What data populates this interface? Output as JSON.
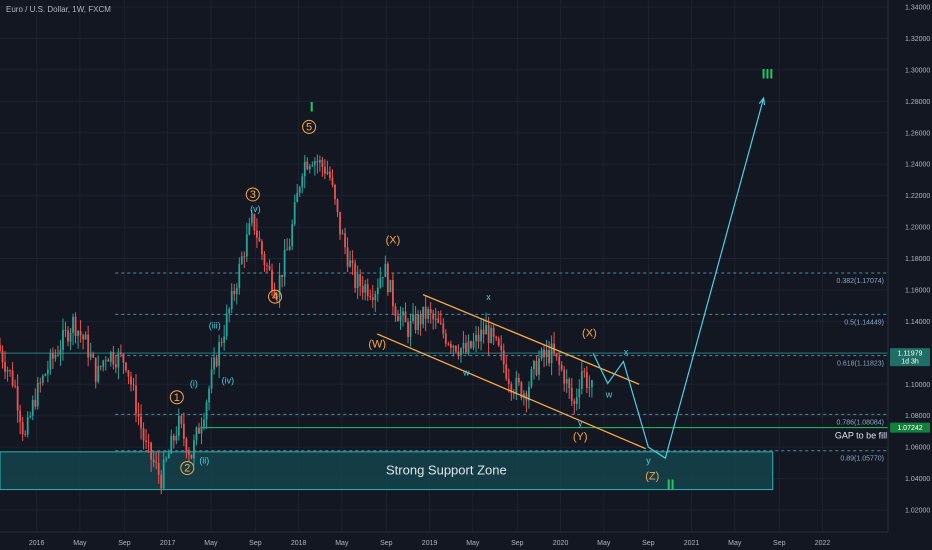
{
  "symbol_title": "Euro / U.S. Dollar, 1W, FXCM",
  "colors": {
    "background": "#131722",
    "grid": "#1e2230",
    "up": "#26a69a",
    "down": "#ef5350",
    "fib_line": "#4a90a4",
    "orange": "#f7a94a",
    "cyan": "#4dd0e1",
    "green": "#22c55e",
    "zone_fill": "#154a52",
    "zone_stroke": "#2ab3b8"
  },
  "chart_data": {
    "type": "candlestick",
    "ylim": [
      1.0,
      1.34
    ],
    "y_ticks": [
      "1.34000",
      "1.32000",
      "1.30000",
      "1.28000",
      "1.26000",
      "1.24000",
      "1.22000",
      "1.20000",
      "1.18000",
      "1.16000",
      "1.14000",
      "1.12000",
      "1.10000",
      "1.08000",
      "1.06000",
      "1.04000",
      "1.02000"
    ],
    "y_tick_values": [
      1.34,
      1.32,
      1.3,
      1.28,
      1.26,
      1.24,
      1.22,
      1.2,
      1.18,
      1.16,
      1.14,
      1.12,
      1.1,
      1.08,
      1.06,
      1.04,
      1.02
    ],
    "x_ticks": [
      {
        "label": "2016",
        "t": 2016.0
      },
      {
        "label": "May",
        "t": 2016.33
      },
      {
        "label": "Sep",
        "t": 2016.67
      },
      {
        "label": "2017",
        "t": 2017.0
      },
      {
        "label": "May",
        "t": 2017.33
      },
      {
        "label": "Sep",
        "t": 2017.67
      },
      {
        "label": "2018",
        "t": 2018.0
      },
      {
        "label": "May",
        "t": 2018.33
      },
      {
        "label": "Sep",
        "t": 2018.67
      },
      {
        "label": "2019",
        "t": 2019.0
      },
      {
        "label": "May",
        "t": 2019.33
      },
      {
        "label": "Sep",
        "t": 2019.67
      },
      {
        "label": "2020",
        "t": 2020.0
      },
      {
        "label": "May",
        "t": 2020.33
      },
      {
        "label": "Sep",
        "t": 2020.67
      },
      {
        "label": "2021",
        "t": 2021.0
      },
      {
        "label": "May",
        "t": 2021.33
      },
      {
        "label": "Sep",
        "t": 2021.67
      },
      {
        "label": "2022",
        "t": 2022.0
      }
    ],
    "xlim": [
      2015.72,
      2022.5
    ],
    "price_path": [
      {
        "t": 2015.72,
        "p": 1.125
      },
      {
        "t": 2015.85,
        "p": 1.1
      },
      {
        "t": 2015.93,
        "p": 1.065
      },
      {
        "t": 2016.0,
        "p": 1.09
      },
      {
        "t": 2016.1,
        "p": 1.11
      },
      {
        "t": 2016.3,
        "p": 1.14
      },
      {
        "t": 2016.4,
        "p": 1.125
      },
      {
        "t": 2016.48,
        "p": 1.105
      },
      {
        "t": 2016.55,
        "p": 1.12
      },
      {
        "t": 2016.7,
        "p": 1.115
      },
      {
        "t": 2016.85,
        "p": 1.06
      },
      {
        "t": 2016.97,
        "p": 1.04
      },
      {
        "t": 2017.1,
        "p": 1.075
      },
      {
        "t": 2017.2,
        "p": 1.055
      },
      {
        "t": 2017.3,
        "p": 1.085
      },
      {
        "t": 2017.4,
        "p": 1.12
      },
      {
        "t": 2017.5,
        "p": 1.15
      },
      {
        "t": 2017.6,
        "p": 1.185
      },
      {
        "t": 2017.67,
        "p": 1.205
      },
      {
        "t": 2017.75,
        "p": 1.18
      },
      {
        "t": 2017.85,
        "p": 1.16
      },
      {
        "t": 2017.95,
        "p": 1.19
      },
      {
        "t": 2018.05,
        "p": 1.24
      },
      {
        "t": 2018.12,
        "p": 1.245
      },
      {
        "t": 2018.25,
        "p": 1.235
      },
      {
        "t": 2018.33,
        "p": 1.2
      },
      {
        "t": 2018.45,
        "p": 1.165
      },
      {
        "t": 2018.6,
        "p": 1.16
      },
      {
        "t": 2018.67,
        "p": 1.175
      },
      {
        "t": 2018.75,
        "p": 1.15
      },
      {
        "t": 2018.85,
        "p": 1.135
      },
      {
        "t": 2019.0,
        "p": 1.145
      },
      {
        "t": 2019.15,
        "p": 1.13
      },
      {
        "t": 2019.3,
        "p": 1.12
      },
      {
        "t": 2019.45,
        "p": 1.135
      },
      {
        "t": 2019.55,
        "p": 1.12
      },
      {
        "t": 2019.65,
        "p": 1.1
      },
      {
        "t": 2019.75,
        "p": 1.095
      },
      {
        "t": 2019.85,
        "p": 1.115
      },
      {
        "t": 2019.95,
        "p": 1.12
      },
      {
        "t": 2020.05,
        "p": 1.105
      },
      {
        "t": 2020.12,
        "p": 1.085
      },
      {
        "t": 2020.18,
        "p": 1.11
      },
      {
        "t": 2020.25,
        "p": 1.0965
      }
    ],
    "fib_levels": [
      {
        "label": "0.382(1.17074)",
        "value": 1.17074
      },
      {
        "label": "0.5(1.14449)",
        "value": 1.14449
      },
      {
        "label": "0.618(1.11823)",
        "value": 1.11823
      },
      {
        "label": "0.786(1.08084)",
        "value": 1.08084
      },
      {
        "label": "0.89(1.05770)",
        "value": 1.0577
      }
    ],
    "current_price": {
      "label": "1.11979",
      "sub_label": "1d 3h",
      "value": 1.11979
    },
    "gap_price": {
      "label": "1.07242",
      "value": 1.07242
    },
    "support_zone": {
      "label": "Strong Support Zone",
      "t_start": 2015.72,
      "t_end": 2021.62,
      "p_top": 1.057,
      "p_bottom": 1.033
    },
    "gap_label": "GAP to be filled",
    "channel": {
      "upper": [
        {
          "t": 2018.95,
          "p": 1.157
        },
        {
          "t": 2020.6,
          "p": 1.1
        }
      ],
      "lower": [
        {
          "t": 2018.6,
          "p": 1.132
        },
        {
          "t": 2020.65,
          "p": 1.059
        }
      ]
    },
    "projection": [
      {
        "t": 2020.25,
        "p": 1.1195
      },
      {
        "t": 2020.36,
        "p": 1.1005
      },
      {
        "t": 2020.48,
        "p": 1.1145
      },
      {
        "t": 2020.67,
        "p": 1.06
      },
      {
        "t": 2020.8,
        "p": 1.053
      },
      {
        "t": 2021.55,
        "p": 1.282
      }
    ],
    "wave_labels": [
      {
        "text": "1",
        "t": 2017.07,
        "p": 1.0895,
        "style": "orange",
        "circled": true
      },
      {
        "text": "2",
        "t": 2017.15,
        "p": 1.0445,
        "style": "orange",
        "circled": true
      },
      {
        "text": "3",
        "t": 2017.65,
        "p": 1.2185,
        "style": "orange",
        "circled": true
      },
      {
        "text": "4",
        "t": 2017.82,
        "p": 1.1535,
        "style": "orange",
        "circled": true
      },
      {
        "text": "5",
        "t": 2018.08,
        "p": 1.2615,
        "style": "orange",
        "circled": true
      },
      {
        "text": "(i)",
        "t": 2017.2,
        "p": 1.0985,
        "style": "cyan",
        "circled": false
      },
      {
        "text": "(ii)",
        "t": 2017.28,
        "p": 1.0495,
        "style": "cyan",
        "circled": false
      },
      {
        "text": "(iii)",
        "t": 2017.36,
        "p": 1.1355,
        "style": "cyan",
        "circled": false
      },
      {
        "text": "(iv)",
        "t": 2017.46,
        "p": 1.1005,
        "style": "cyan",
        "circled": false
      },
      {
        "text": "(v)",
        "t": 2017.67,
        "p": 1.2095,
        "style": "cyan",
        "circled": false
      },
      {
        "text": "(X)",
        "t": 2018.72,
        "p": 1.1895,
        "style": "orange",
        "circled": false
      },
      {
        "text": "(W)",
        "t": 2018.6,
        "p": 1.1235,
        "style": "orange",
        "circled": false
      },
      {
        "text": "x",
        "t": 2019.45,
        "p": 1.1535,
        "style": "cyan",
        "circled": false
      },
      {
        "text": "w",
        "t": 2019.28,
        "p": 1.1055,
        "style": "cyan",
        "circled": false
      },
      {
        "text": "(X)",
        "t": 2020.22,
        "p": 1.1305,
        "style": "orange",
        "circled": false
      },
      {
        "text": "y",
        "t": 2020.15,
        "p": 1.0735,
        "style": "cyan",
        "circled": false
      },
      {
        "text": "(Y)",
        "t": 2020.15,
        "p": 1.0645,
        "style": "orange",
        "circled": false
      },
      {
        "text": "x",
        "t": 2020.5,
        "p": 1.1185,
        "style": "cyan",
        "circled": false
      },
      {
        "text": "w",
        "t": 2020.37,
        "p": 1.0915,
        "style": "cyan",
        "circled": false
      },
      {
        "text": "y",
        "t": 2020.67,
        "p": 1.0495,
        "style": "cyan",
        "circled": false
      },
      {
        "text": "(Z)",
        "t": 2020.7,
        "p": 1.0395,
        "style": "orange",
        "circled": false
      },
      {
        "text": "I",
        "t": 2018.1,
        "p": 1.2735,
        "style": "green",
        "circled": false
      },
      {
        "text": "II",
        "t": 2020.84,
        "p": 1.0335,
        "style": "green",
        "circled": false
      },
      {
        "text": "III",
        "t": 2021.58,
        "p": 1.2945,
        "style": "green",
        "circled": false
      }
    ]
  }
}
